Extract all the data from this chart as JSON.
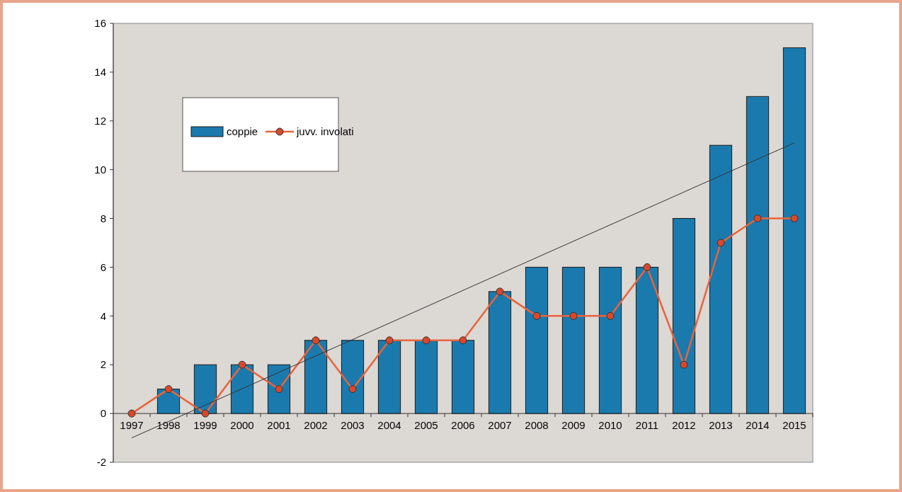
{
  "chart_data": {
    "type": "bar",
    "categories": [
      "1997",
      "1998",
      "1999",
      "2000",
      "2001",
      "2002",
      "2003",
      "2004",
      "2005",
      "2006",
      "2007",
      "2008",
      "2009",
      "2010",
      "2011",
      "2012",
      "2013",
      "2014",
      "2015"
    ],
    "series": [
      {
        "name": "coppie",
        "color": "#1a7aad",
        "values": [
          0,
          1,
          2,
          2,
          2,
          3,
          3,
          3,
          3,
          3,
          5,
          6,
          6,
          6,
          6,
          8,
          11,
          13,
          15
        ]
      },
      {
        "name": "juvv. involati",
        "type": "line",
        "color": "#e8643c",
        "marker": "circle",
        "values": [
          0,
          1,
          0,
          2,
          1,
          3,
          1,
          3,
          3,
          3,
          5,
          4,
          4,
          4,
          6,
          2,
          7,
          8,
          8
        ]
      },
      {
        "type": "line",
        "color": "#333333",
        "marker": "none",
        "values": [
          -1.0,
          null,
          null,
          null,
          null,
          null,
          null,
          null,
          null,
          null,
          null,
          null,
          null,
          null,
          null,
          null,
          null,
          null,
          11.1
        ]
      }
    ],
    "ylim": [
      -2,
      16
    ],
    "yticks": [
      -2,
      0,
      2,
      4,
      6,
      8,
      10,
      12,
      14,
      16
    ],
    "grid": false,
    "legend": "top left"
  }
}
